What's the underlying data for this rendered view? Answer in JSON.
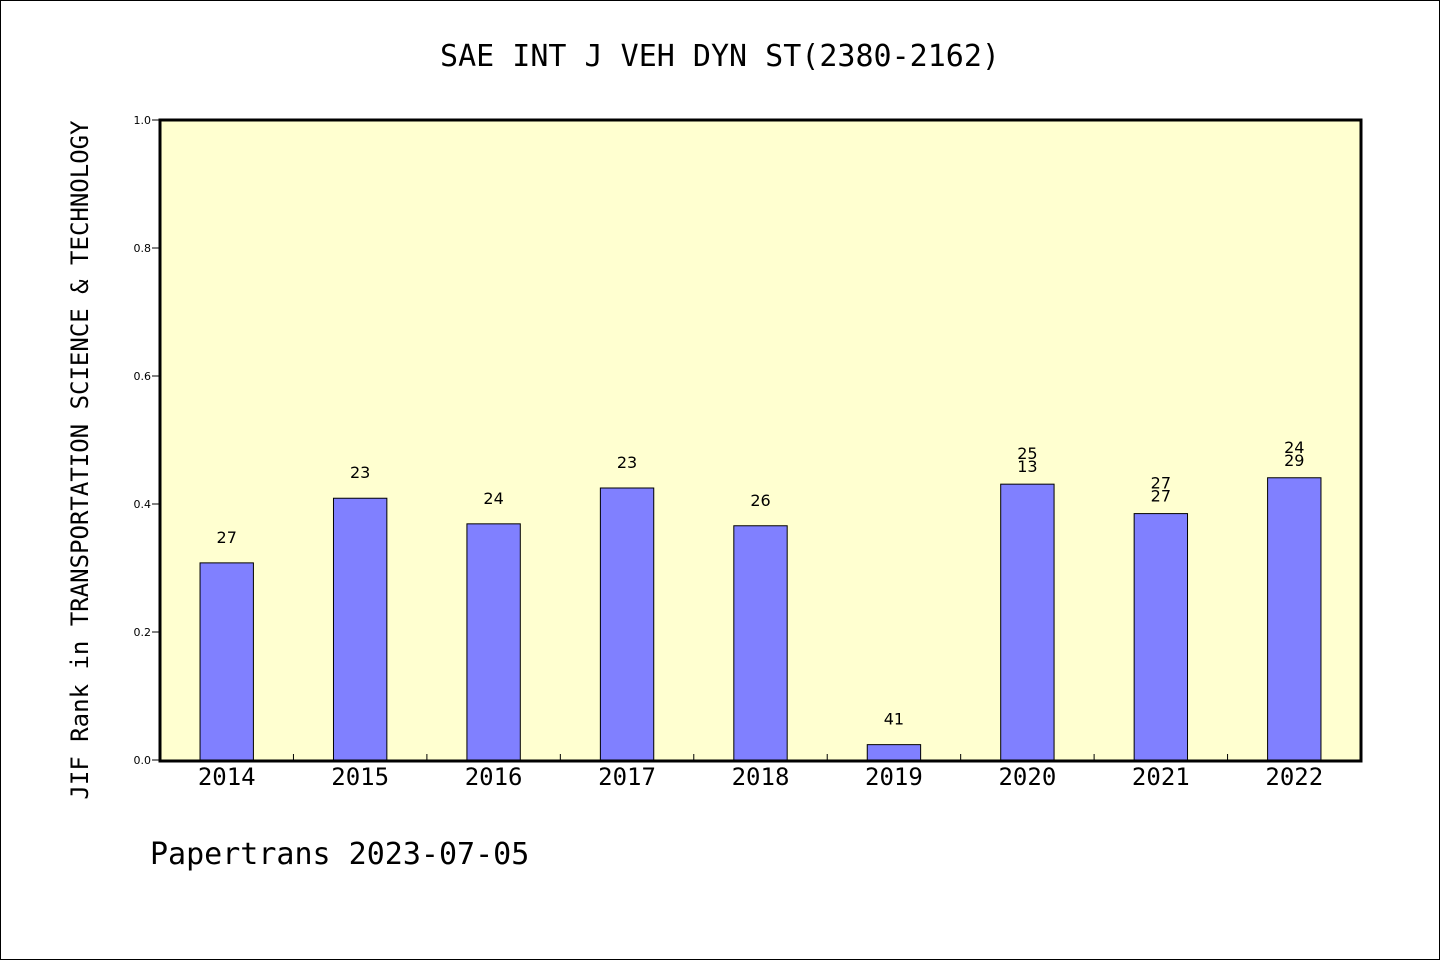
{
  "chart_data": {
    "type": "bar",
    "title": "SAE INT J VEH DYN ST(2380-2162)",
    "ylabel": "JIF Rank in TRANSPORTATION SCIENCE & TECHNOLOGY",
    "xlabel": "",
    "footer": "Papertrans 2023-07-05",
    "categories": [
      "2014",
      "2015",
      "2016",
      "2017",
      "2018",
      "2019",
      "2020",
      "2021",
      "2022"
    ],
    "values": [
      0.308,
      0.409,
      0.369,
      0.425,
      0.366,
      0.024,
      0.431,
      0.385,
      0.441
    ],
    "labels": [
      [
        "27"
      ],
      [
        "23"
      ],
      [
        "24"
      ],
      [
        "23"
      ],
      [
        "26"
      ],
      [
        "41"
      ],
      [
        "25",
        "13"
      ],
      [
        "27",
        "27"
      ],
      [
        "24",
        "29"
      ]
    ],
    "ylim": [
      0,
      1.0
    ],
    "yticks": [
      "0.0",
      "0.2",
      "0.4",
      "0.6",
      "0.8",
      "1.0"
    ],
    "grid": false,
    "colors": {
      "bar": "#8080ff",
      "plot_bg": "#ffffd0",
      "frame": "#000000"
    }
  }
}
